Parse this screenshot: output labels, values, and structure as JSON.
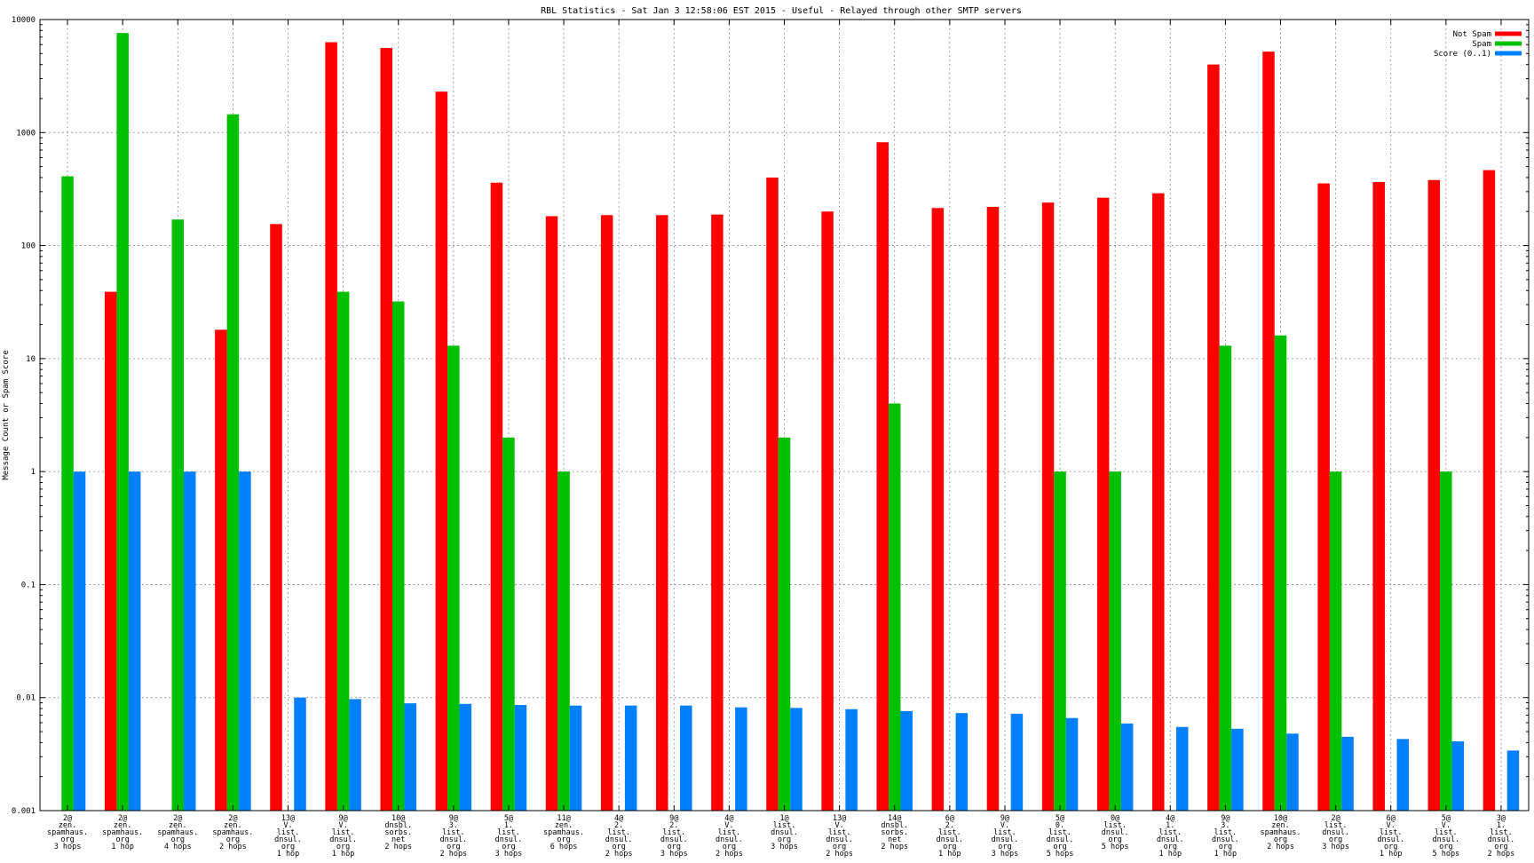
{
  "chart_data": {
    "type": "bar",
    "title": "RBL Statistics - Sat Jan  3 12:58:06 EST 2015 - Useful - Relayed through other SMTP servers",
    "ylabel": "Message Count or Spam Score",
    "xlabel": "",
    "y_scale": "log",
    "ylim": [
      0.001,
      10000
    ],
    "y_ticks": [
      "0.001",
      "0.01",
      "0.1",
      "1",
      "10",
      "100",
      "1000",
      "10000"
    ],
    "grid": true,
    "legend_position": "top-right",
    "categories": [
      [
        "2@",
        "zen.",
        "spamhaus.",
        "org",
        "3 hops"
      ],
      [
        "2@",
        "zen.",
        "spamhaus.",
        "org",
        "1 hop"
      ],
      [
        "2@",
        "zen.",
        "spamhaus.",
        "org",
        "4 hops"
      ],
      [
        "2@",
        "zen.",
        "spamhaus.",
        "org",
        "2 hops"
      ],
      [
        "13@",
        "V.",
        "list.",
        "dnsul.",
        "org",
        "1 hop"
      ],
      [
        "9@",
        "V.",
        "list.",
        "dnsul.",
        "org",
        "1 hop"
      ],
      [
        "10@",
        "dnsbl.",
        "sorbs.",
        "net",
        "2 hops"
      ],
      [
        "9@",
        "3.",
        "list.",
        "dnsul.",
        "org",
        "2 hops"
      ],
      [
        "5@",
        "1.",
        "list.",
        "dnsul.",
        "org",
        "3 hops"
      ],
      [
        "11@",
        "zen.",
        "spamhaus.",
        "org",
        "6 hops"
      ],
      [
        "4@",
        "2.",
        "list.",
        "dnsul.",
        "org",
        "2 hops"
      ],
      [
        "9@",
        "2.",
        "list.",
        "dnsul.",
        "org",
        "3 hops"
      ],
      [
        "4@",
        "V.",
        "list.",
        "dnsul.",
        "org",
        "2 hops"
      ],
      [
        "1@",
        "list.",
        "dnsul.",
        "org",
        "3 hops"
      ],
      [
        "13@",
        "V.",
        "list.",
        "dnsul.",
        "org",
        "2 hops"
      ],
      [
        "14@",
        "dnsbl.",
        "sorbs.",
        "net",
        "2 hops"
      ],
      [
        "6@",
        "2.",
        "list.",
        "dnsul.",
        "org",
        "1 hop"
      ],
      [
        "9@",
        "V.",
        "list.",
        "dnsul.",
        "org",
        "3 hops"
      ],
      [
        "5@",
        "0.",
        "list.",
        "dnsul.",
        "org",
        "5 hops"
      ],
      [
        "0@",
        "list.",
        "dnsul.",
        "org",
        "5 hops"
      ],
      [
        "4@",
        "1.",
        "list.",
        "dnsul.",
        "org",
        "1 hop"
      ],
      [
        "9@",
        "3.",
        "list.",
        "dnsul.",
        "org",
        "1 hop"
      ],
      [
        "10@",
        "zen.",
        "spamhaus.",
        "org",
        "2 hops"
      ],
      [
        "2@",
        "list.",
        "dnsul.",
        "org",
        "3 hops"
      ],
      [
        "6@",
        "V.",
        "list.",
        "dnsul.",
        "org",
        "1 hop"
      ],
      [
        "5@",
        "V.",
        "list.",
        "dnsul.",
        "org",
        "5 hops"
      ],
      [
        "3@",
        "1.",
        "list.",
        "dnsul.",
        "org",
        "2 hops"
      ]
    ],
    "series": [
      {
        "name": "Not Spam",
        "color": "#ff0000",
        "values": [
          null,
          39,
          null,
          18,
          155,
          6300,
          5600,
          2300,
          360,
          182,
          186,
          186,
          188,
          400,
          200,
          820,
          215,
          220,
          240,
          265,
          290,
          4000,
          5200,
          355,
          365,
          380,
          465
        ]
      },
      {
        "name": "Spam",
        "color": "#00c000",
        "values": [
          410,
          7600,
          170,
          1450,
          null,
          39,
          32,
          13,
          2,
          1,
          null,
          null,
          null,
          2,
          null,
          4,
          null,
          null,
          1,
          1,
          null,
          13,
          16,
          1,
          null,
          1,
          null
        ]
      },
      {
        "name": "Score (0..1)",
        "color": "#0080ff",
        "values": [
          1,
          1,
          1,
          1,
          0.01,
          0.0097,
          0.0089,
          0.0088,
          0.0086,
          0.0085,
          0.0085,
          0.0085,
          0.0082,
          0.0081,
          0.0079,
          0.0076,
          0.0073,
          0.0072,
          0.0066,
          0.0059,
          0.0055,
          0.0053,
          0.0048,
          0.0045,
          0.0043,
          0.0041,
          0.0034
        ]
      }
    ]
  }
}
